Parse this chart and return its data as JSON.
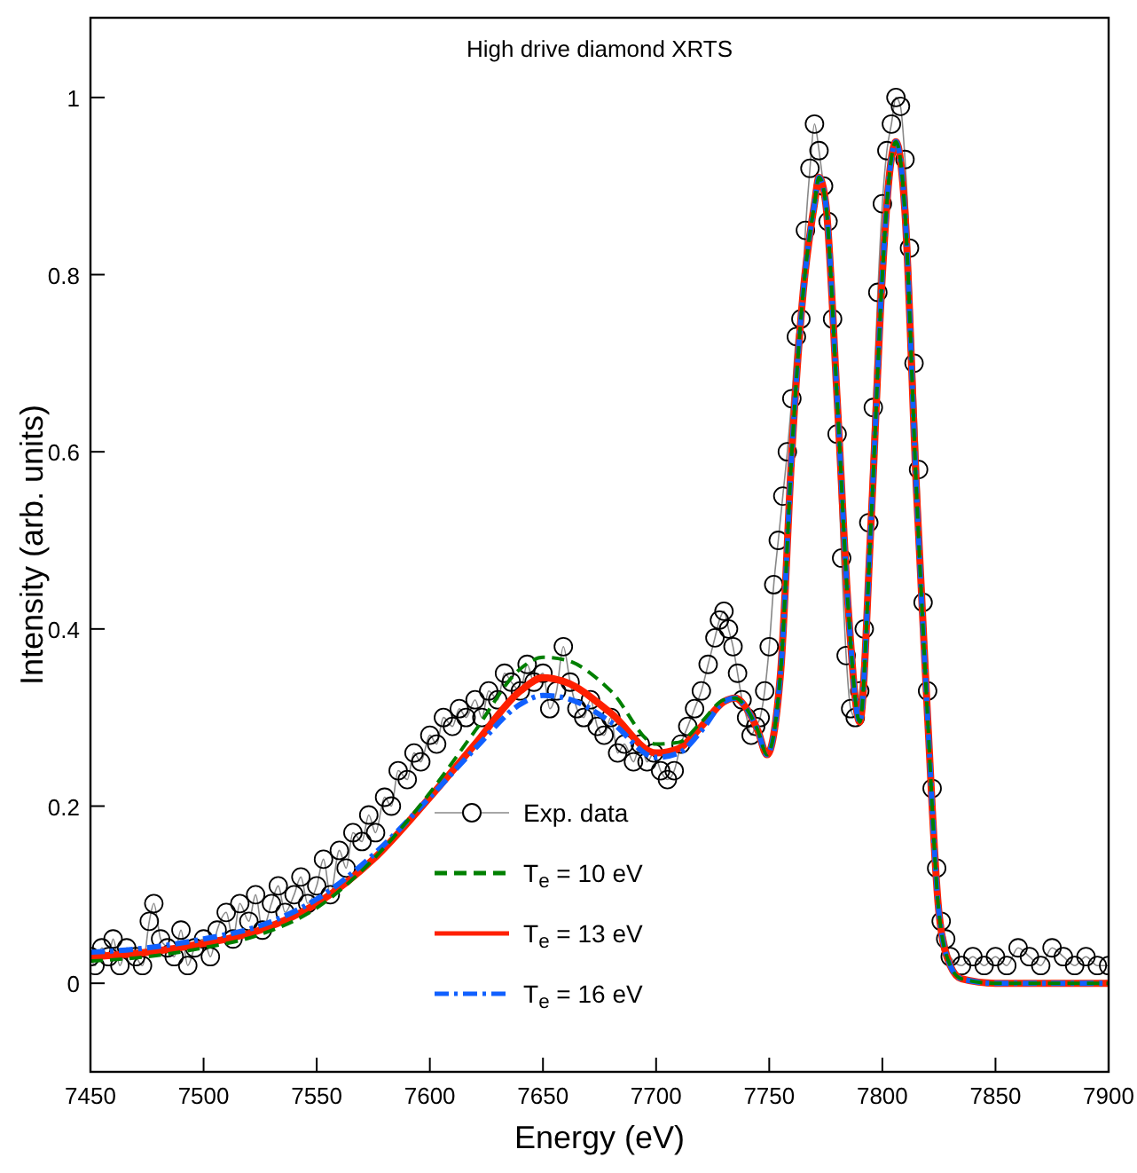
{
  "chart_data": {
    "type": "line",
    "title": "High drive diamond XRTS",
    "xlabel": "Energy (eV)",
    "ylabel": "Intensity (arb. units)",
    "xlim": [
      7450,
      7900
    ],
    "xticks": [
      7450,
      7500,
      7550,
      7600,
      7650,
      7700,
      7750,
      7800,
      7850,
      7900
    ],
    "ylim": [
      -0.1,
      1.09
    ],
    "yticks": [
      0,
      0.2,
      0.4,
      0.6,
      0.8,
      1
    ],
    "grid": false,
    "legend": "bottom",
    "series": [
      {
        "name": "Exp. data",
        "color": "#000000",
        "marker": "circle",
        "line_style": "solid",
        "x": [
          7450,
          7452,
          7455,
          7458,
          7460,
          7463,
          7466,
          7470,
          7473,
          7476,
          7478,
          7481,
          7484,
          7487,
          7490,
          7493,
          7496,
          7500,
          7503,
          7506,
          7510,
          7513,
          7516,
          7520,
          7523,
          7526,
          7530,
          7533,
          7536,
          7540,
          7543,
          7546,
          7550,
          7553,
          7556,
          7560,
          7563,
          7566,
          7570,
          7573,
          7576,
          7580,
          7583,
          7586,
          7590,
          7593,
          7596,
          7600,
          7603,
          7606,
          7610,
          7613,
          7616,
          7620,
          7623,
          7626,
          7630,
          7633,
          7636,
          7640,
          7643,
          7646,
          7650,
          7653,
          7656,
          7659,
          7662,
          7665,
          7668,
          7671,
          7674,
          7677,
          7680,
          7683,
          7686,
          7690,
          7693,
          7696,
          7699,
          7702,
          7705,
          7708,
          7711,
          7714,
          7717,
          7720,
          7723,
          7726,
          7728,
          7730,
          7732,
          7734,
          7736,
          7738,
          7740,
          7742,
          7744,
          7746,
          7748,
          7750,
          7752,
          7754,
          7756,
          7758,
          7760,
          7762,
          7764,
          7766,
          7768,
          7770,
          7772,
          7774,
          7776,
          7778,
          7780,
          7782,
          7784,
          7786,
          7788,
          7790,
          7792,
          7794,
          7796,
          7798,
          7800,
          7802,
          7804,
          7806,
          7808,
          7810,
          7812,
          7814,
          7816,
          7818,
          7820,
          7822,
          7824,
          7826,
          7828,
          7830,
          7835,
          7840,
          7845,
          7850,
          7855,
          7860,
          7865,
          7870,
          7875,
          7880,
          7885,
          7890,
          7895,
          7900
        ],
        "values": [
          0.03,
          0.02,
          0.04,
          0.03,
          0.05,
          0.02,
          0.04,
          0.03,
          0.02,
          0.07,
          0.09,
          0.05,
          0.04,
          0.03,
          0.06,
          0.02,
          0.04,
          0.05,
          0.03,
          0.06,
          0.08,
          0.05,
          0.09,
          0.07,
          0.1,
          0.06,
          0.09,
          0.11,
          0.08,
          0.1,
          0.12,
          0.09,
          0.11,
          0.14,
          0.1,
          0.15,
          0.13,
          0.17,
          0.16,
          0.19,
          0.17,
          0.21,
          0.2,
          0.24,
          0.23,
          0.26,
          0.25,
          0.28,
          0.27,
          0.3,
          0.29,
          0.31,
          0.3,
          0.32,
          0.3,
          0.33,
          0.32,
          0.35,
          0.34,
          0.33,
          0.36,
          0.34,
          0.35,
          0.31,
          0.33,
          0.38,
          0.34,
          0.31,
          0.3,
          0.32,
          0.29,
          0.28,
          0.3,
          0.26,
          0.27,
          0.25,
          0.27,
          0.25,
          0.26,
          0.24,
          0.23,
          0.24,
          0.27,
          0.29,
          0.31,
          0.33,
          0.36,
          0.39,
          0.41,
          0.42,
          0.4,
          0.38,
          0.35,
          0.32,
          0.3,
          0.28,
          0.29,
          0.3,
          0.33,
          0.38,
          0.45,
          0.5,
          0.55,
          0.6,
          0.66,
          0.73,
          0.75,
          0.85,
          0.92,
          0.97,
          0.94,
          0.9,
          0.86,
          0.75,
          0.62,
          0.48,
          0.37,
          0.31,
          0.3,
          0.33,
          0.4,
          0.52,
          0.65,
          0.78,
          0.88,
          0.94,
          0.97,
          1.0,
          0.99,
          0.93,
          0.83,
          0.7,
          0.58,
          0.43,
          0.33,
          0.22,
          0.13,
          0.07,
          0.05,
          0.03,
          0.02,
          0.03,
          0.02,
          0.03,
          0.02,
          0.04,
          0.03,
          0.02,
          0.04,
          0.03,
          0.02,
          0.03,
          0.02,
          0.02
        ]
      },
      {
        "name": "T$_{e}$ = 10 eV",
        "color": "#008000",
        "marker": "none",
        "line_style": "dashed",
        "x": [
          7450,
          7475,
          7500,
          7525,
          7550,
          7575,
          7600,
          7620,
          7640,
          7650,
          7660,
          7680,
          7700,
          7710,
          7720,
          7730,
          7735,
          7740,
          7745,
          7749,
          7755,
          7760,
          7765,
          7770,
          7772,
          7775,
          7780,
          7785,
          7790,
          7795,
          7800,
          7803,
          7806,
          7810,
          7815,
          7820,
          7825,
          7830,
          7835,
          7850,
          7900
        ],
        "values": [
          0.025,
          0.03,
          0.04,
          0.055,
          0.085,
          0.14,
          0.215,
          0.285,
          0.355,
          0.368,
          0.365,
          0.33,
          0.27,
          0.272,
          0.295,
          0.32,
          0.322,
          0.31,
          0.285,
          0.258,
          0.35,
          0.6,
          0.78,
          0.88,
          0.91,
          0.88,
          0.66,
          0.42,
          0.295,
          0.52,
          0.8,
          0.91,
          0.95,
          0.87,
          0.56,
          0.3,
          0.08,
          0.02,
          0.005,
          0,
          0
        ]
      },
      {
        "name": "T$_{e}$ = 13 eV",
        "color": "#ff2000",
        "marker": "none",
        "line_style": "solid",
        "x": [
          7450,
          7475,
          7500,
          7525,
          7550,
          7575,
          7600,
          7620,
          7640,
          7650,
          7660,
          7680,
          7700,
          7710,
          7720,
          7730,
          7735,
          7740,
          7745,
          7749,
          7755,
          7760,
          7765,
          7770,
          7772,
          7775,
          7780,
          7785,
          7790,
          7795,
          7800,
          7803,
          7806,
          7810,
          7815,
          7820,
          7825,
          7830,
          7835,
          7850,
          7900
        ],
        "values": [
          0.03,
          0.035,
          0.045,
          0.06,
          0.09,
          0.14,
          0.21,
          0.27,
          0.33,
          0.345,
          0.34,
          0.305,
          0.26,
          0.265,
          0.29,
          0.318,
          0.322,
          0.31,
          0.285,
          0.258,
          0.35,
          0.6,
          0.78,
          0.88,
          0.91,
          0.88,
          0.66,
          0.42,
          0.295,
          0.52,
          0.8,
          0.91,
          0.95,
          0.87,
          0.56,
          0.3,
          0.08,
          0.02,
          0.005,
          0,
          0
        ]
      },
      {
        "name": "T$_{e}$ = 16 eV",
        "color": "#1060ff",
        "marker": "none",
        "line_style": "dashdot",
        "x": [
          7450,
          7475,
          7500,
          7525,
          7550,
          7575,
          7600,
          7620,
          7640,
          7650,
          7660,
          7680,
          7700,
          7710,
          7720,
          7730,
          7735,
          7740,
          7745,
          7749,
          7755,
          7760,
          7765,
          7770,
          7772,
          7775,
          7780,
          7785,
          7790,
          7795,
          7800,
          7803,
          7806,
          7810,
          7815,
          7820,
          7825,
          7830,
          7835,
          7850,
          7900
        ],
        "values": [
          0.035,
          0.04,
          0.05,
          0.065,
          0.095,
          0.145,
          0.21,
          0.265,
          0.315,
          0.325,
          0.322,
          0.295,
          0.255,
          0.26,
          0.285,
          0.318,
          0.322,
          0.31,
          0.285,
          0.258,
          0.35,
          0.6,
          0.78,
          0.88,
          0.91,
          0.88,
          0.66,
          0.42,
          0.295,
          0.52,
          0.8,
          0.91,
          0.95,
          0.87,
          0.56,
          0.3,
          0.08,
          0.02,
          0.005,
          0,
          0
        ]
      }
    ]
  }
}
